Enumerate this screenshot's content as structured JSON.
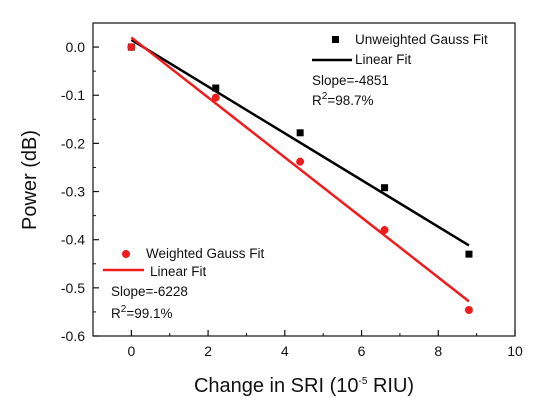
{
  "chart_data": {
    "type": "scatter",
    "xlabel": {
      "prefix": "Change in SRI (10",
      "exponent": "-5",
      "suffix": " RIU)"
    },
    "ylabel": "Power (dB)",
    "xlim": [
      -1,
      10
    ],
    "ylim": [
      -0.6,
      0.05
    ],
    "xticks": [
      0,
      2,
      4,
      6,
      8,
      10
    ],
    "yticks": [
      0.0,
      -0.1,
      -0.2,
      -0.3,
      -0.4,
      -0.5,
      -0.6
    ],
    "xtick_labels": [
      "0",
      "2",
      "4",
      "6",
      "8",
      "10"
    ],
    "ytick_labels": [
      "0.0",
      "-0.1",
      "-0.2",
      "-0.3",
      "-0.4",
      "-0.5",
      "-0.6"
    ],
    "grid": false,
    "series": [
      {
        "name": "Unweighted Gauss Fit",
        "marker": "square",
        "color": "#000000",
        "x": [
          0,
          2.2,
          4.4,
          6.6,
          8.8
        ],
        "y": [
          0.0,
          -0.085,
          -0.178,
          -0.292,
          -0.43
        ],
        "fit": {
          "label": "Linear Fit",
          "x": [
            0,
            8.8
          ],
          "y": [
            0.015,
            -0.412
          ],
          "slope_text": "Slope=-4851",
          "r2_prefix": "R",
          "r2_exp": "2",
          "r2_value": "=98.7%"
        },
        "legend_position": "top-right"
      },
      {
        "name": "Weighted Gauss Fit",
        "marker": "circle",
        "color": "#ee1c1c",
        "x": [
          0,
          2.2,
          4.4,
          6.6,
          8.8
        ],
        "y": [
          0.0,
          -0.105,
          -0.238,
          -0.38,
          -0.546
        ],
        "fit": {
          "label": "Linear Fit",
          "x": [
            0,
            8.8
          ],
          "y": [
            0.02,
            -0.528
          ],
          "slope_text": "Slope=-6228",
          "r2_prefix": "R",
          "r2_exp": "2",
          "r2_value": "=99.1%"
        },
        "legend_position": "bottom-left"
      }
    ]
  }
}
